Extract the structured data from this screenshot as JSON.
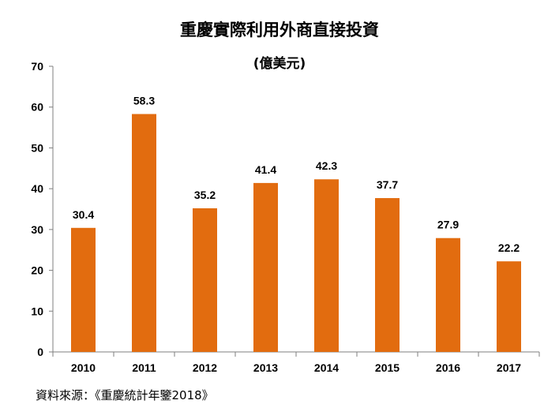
{
  "chart_data": {
    "type": "bar",
    "title": "重慶實際利用外商直接投資",
    "subtitle": "(億美元)",
    "categories": [
      "2010",
      "2011",
      "2012",
      "2013",
      "2014",
      "2015",
      "2016",
      "2017"
    ],
    "values": [
      30.4,
      58.3,
      35.2,
      41.4,
      42.3,
      37.7,
      27.9,
      22.2
    ],
    "value_labels": [
      "30.4",
      "58.3",
      "35.2",
      "41.4",
      "42.3",
      "37.7",
      "27.9",
      "22.2"
    ],
    "xlabel": "",
    "ylabel": "",
    "ylim": [
      0,
      70
    ],
    "yticks": [
      "0",
      "10",
      "20",
      "30",
      "40",
      "50",
      "60",
      "70"
    ],
    "grid": false,
    "legend": "none",
    "bar_color": "#E26C0F"
  },
  "source": "資料來源：《重慶統計年鑒2018》"
}
